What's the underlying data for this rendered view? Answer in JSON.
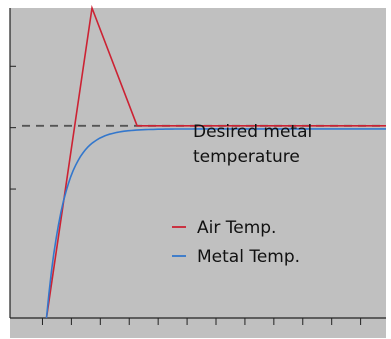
{
  "chart_data": {
    "type": "line",
    "title": "",
    "xlabel": "",
    "ylabel": "",
    "xlim": [
      0,
      1
    ],
    "ylim": [
      -0.55,
      1.95
    ],
    "grid": false,
    "tick_labels_shown": false,
    "x_tick_count": 13,
    "y_tick_count": 3,
    "background_color": "#c0c0c0",
    "annotation": {
      "lines": [
        "Desired metal",
        "temperature"
      ]
    },
    "reference_line": {
      "label": "Desired metal temperature",
      "y": 1.0,
      "style": "dashed",
      "color": "#555555"
    },
    "legend": {
      "placement": "center-right",
      "entries": [
        {
          "label": "Air Temp.",
          "color": "#cc2233"
        },
        {
          "label": "Metal Temp.",
          "color": "#3377cc"
        }
      ]
    },
    "series": [
      {
        "name": "Air Temp.",
        "color": "#cc2233",
        "x": [
          0.097,
          0.218,
          0.338,
          1.0
        ],
        "y": [
          -0.55,
          1.95,
          1.0,
          1.0
        ]
      },
      {
        "name": "Metal Temp.",
        "color": "#3377cc",
        "function": "exponential_rise",
        "x_start": 0.097,
        "x_end": 1.0,
        "y_start": -0.55,
        "y_final": 0.975,
        "time_constant": 0.047
      }
    ]
  }
}
